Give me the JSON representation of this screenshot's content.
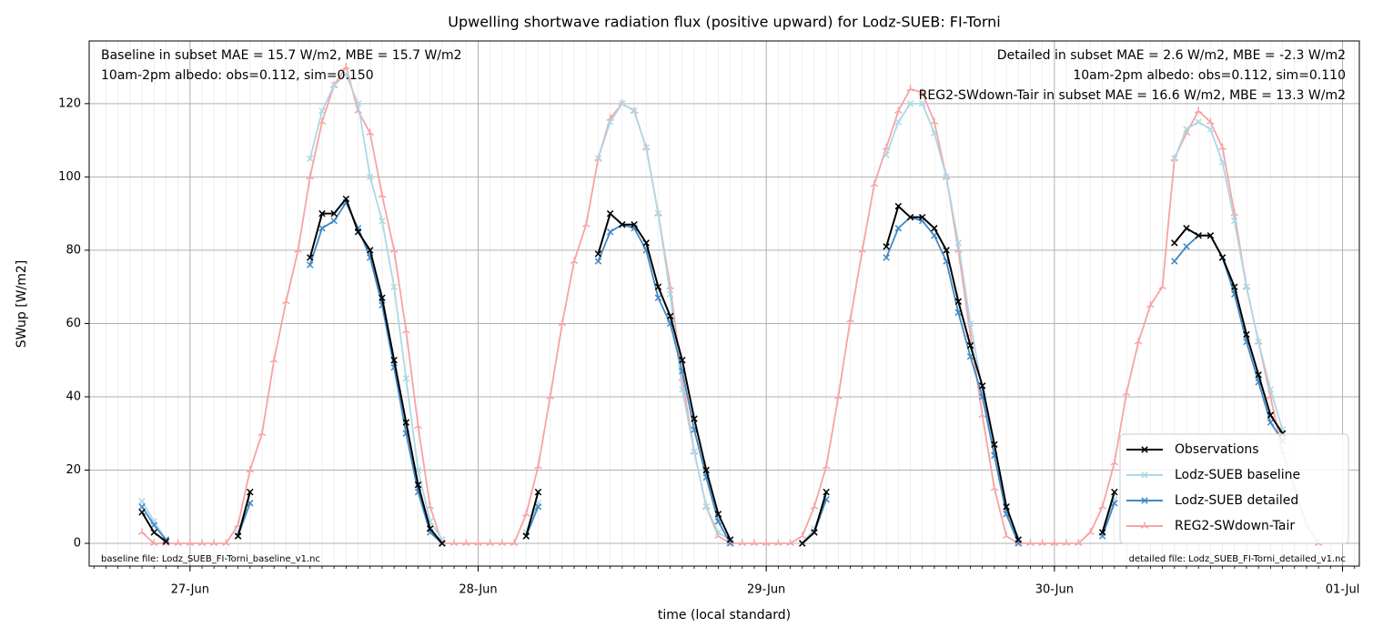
{
  "chart_data": {
    "type": "line",
    "title": "Upwelling shortwave radiation flux (positive upward) for Lodz-SUEB: FI-Torni",
    "xlabel": "time (local standard)",
    "ylabel": "SWup [W/m2]",
    "xlim": [
      -8.4,
      97.4
    ],
    "ylim": [
      -6.2,
      137.1
    ],
    "xticks": [
      {
        "value": 0,
        "label": "27-Jun"
      },
      {
        "value": 24,
        "label": "28-Jun"
      },
      {
        "value": 48,
        "label": "29-Jun"
      },
      {
        "value": 72,
        "label": "30-Jun"
      },
      {
        "value": 96,
        "label": "01-Jul"
      }
    ],
    "yticks": [
      0,
      20,
      40,
      60,
      80,
      100,
      120
    ],
    "grid": true,
    "legend": "lower right",
    "x": [
      -4,
      -3,
      -2,
      -1,
      0,
      1,
      2,
      3,
      4,
      5,
      6,
      7,
      8,
      9,
      10,
      11,
      12,
      13,
      14,
      15,
      16,
      17,
      18,
      19,
      20,
      21,
      22,
      23,
      24,
      25,
      26,
      27,
      28,
      29,
      30,
      31,
      32,
      33,
      34,
      35,
      36,
      37,
      38,
      39,
      40,
      41,
      42,
      43,
      44,
      45,
      46,
      47,
      48,
      49,
      50,
      51,
      52,
      53,
      54,
      55,
      56,
      57,
      58,
      59,
      60,
      61,
      62,
      63,
      64,
      65,
      66,
      67,
      68,
      69,
      70,
      71,
      72,
      73,
      74,
      75,
      76,
      77,
      78,
      79,
      80,
      81,
      82,
      83,
      84,
      85,
      86,
      87,
      88,
      89,
      90,
      91,
      92,
      93,
      94
    ],
    "series": [
      {
        "name": "Observations",
        "color": "#000000",
        "marker": "x",
        "values": [
          8.5,
          3,
          0.5,
          null,
          null,
          null,
          null,
          null,
          2,
          14,
          null,
          null,
          null,
          null,
          78,
          90,
          90,
          94,
          85,
          80,
          67,
          50,
          33,
          16,
          4,
          0,
          null,
          null,
          null,
          null,
          null,
          null,
          2,
          14,
          null,
          null,
          null,
          null,
          79,
          90,
          87,
          87,
          82,
          70,
          62,
          50,
          34,
          20,
          8,
          1,
          null,
          null,
          null,
          null,
          null,
          0,
          3,
          14,
          null,
          null,
          null,
          null,
          81,
          92,
          89,
          89,
          86,
          80,
          66,
          54,
          43,
          27,
          10,
          1,
          null,
          null,
          null,
          null,
          null,
          null,
          3,
          14,
          null,
          null,
          null,
          null,
          82,
          86,
          84,
          84,
          78,
          70,
          57,
          46,
          35,
          30,
          null,
          null,
          null
        ]
      },
      {
        "name": "Lodz-SUEB baseline",
        "color": "#add8e6",
        "marker": "x",
        "values": [
          11.5,
          6,
          1,
          null,
          null,
          null,
          null,
          null,
          3,
          11,
          null,
          null,
          null,
          null,
          105,
          118,
          125,
          128,
          120,
          100,
          88,
          70,
          45,
          20,
          6,
          1,
          null,
          null,
          null,
          null,
          null,
          null,
          3,
          11,
          null,
          null,
          null,
          null,
          105,
          115,
          120,
          118,
          108,
          90,
          68,
          42,
          25,
          10,
          3,
          1,
          null,
          null,
          null,
          null,
          null,
          0,
          4,
          12,
          null,
          null,
          null,
          null,
          106,
          115,
          120,
          120,
          112,
          100,
          82,
          60,
          42,
          24,
          8,
          1,
          null,
          null,
          null,
          null,
          null,
          null,
          3,
          12,
          null,
          null,
          null,
          null,
          105,
          113,
          115,
          113,
          104,
          88,
          70,
          55,
          42,
          31,
          null,
          null,
          null
        ]
      },
      {
        "name": "Lodz-SUEB detailed",
        "color": "#4189c6",
        "marker": "x",
        "values": [
          10,
          5,
          1,
          null,
          null,
          null,
          null,
          null,
          2,
          11,
          null,
          null,
          null,
          null,
          76,
          86,
          88,
          93,
          86,
          78,
          65,
          48,
          30,
          14,
          3,
          0,
          null,
          null,
          null,
          null,
          null,
          null,
          2,
          10,
          null,
          null,
          null,
          null,
          77,
          85,
          87,
          86,
          80,
          67,
          60,
          47,
          31,
          18,
          6,
          0,
          null,
          null,
          null,
          null,
          null,
          0,
          3,
          12,
          null,
          null,
          null,
          null,
          78,
          86,
          89,
          88,
          84,
          77,
          63,
          51,
          40,
          24,
          8,
          0,
          null,
          null,
          null,
          null,
          null,
          null,
          2,
          11,
          null,
          null,
          null,
          null,
          77,
          81,
          84,
          84,
          78,
          68,
          55,
          44,
          33,
          28,
          null,
          null,
          null
        ]
      },
      {
        "name": "REG2-SWdown-Tair",
        "color": "#f7a3a3",
        "marker": "tri",
        "values": [
          3,
          0,
          0,
          0,
          0,
          0,
          0,
          0,
          5,
          20,
          30,
          50,
          66,
          80,
          100,
          115,
          125,
          130,
          118,
          112,
          95,
          80,
          58,
          32,
          10,
          0,
          0,
          0,
          0,
          0,
          0,
          0,
          8,
          21,
          40,
          60,
          77,
          87,
          105,
          116,
          120,
          118,
          108,
          90,
          70,
          45,
          25,
          10,
          2,
          0,
          0,
          0,
          0,
          0,
          0,
          2,
          10,
          21,
          40,
          61,
          80,
          98,
          108,
          118,
          124,
          123,
          115,
          100,
          80,
          57,
          35,
          15,
          2,
          0,
          0,
          0,
          0,
          0,
          0,
          3,
          10,
          22,
          41,
          55,
          65,
          70,
          105,
          112,
          118,
          115,
          108,
          90,
          70,
          55,
          40,
          25,
          15,
          5,
          0
        ]
      }
    ],
    "annotations_left": [
      {
        "text": "Baseline in subset MAE = 15.7 W/m2, MBE = 15.7 W/m2",
        "color": "#add8e6"
      },
      {
        "text": "10am-2pm albedo: obs=0.112, sim=0.150",
        "color": "#000000"
      }
    ],
    "annotations_right": [
      {
        "text": "Detailed in subset MAE = 2.6 W/m2, MBE = -2.3 W/m2",
        "color": "#1f77b4"
      },
      {
        "text": "10am-2pm albedo: obs=0.112, sim=0.110",
        "color": "#000000"
      },
      {
        "text": "REG2-SWdown-Tair in subset MAE = 16.6 W/m2, MBE = 13.3 W/m2",
        "color": "#ff0000"
      }
    ],
    "footnote_left": "baseline file: Lodz_SUEB_FI-Torni_baseline_v1.nc",
    "footnote_right": "detailed file: Lodz_SUEB_FI-Torni_detailed_v1.nc"
  }
}
